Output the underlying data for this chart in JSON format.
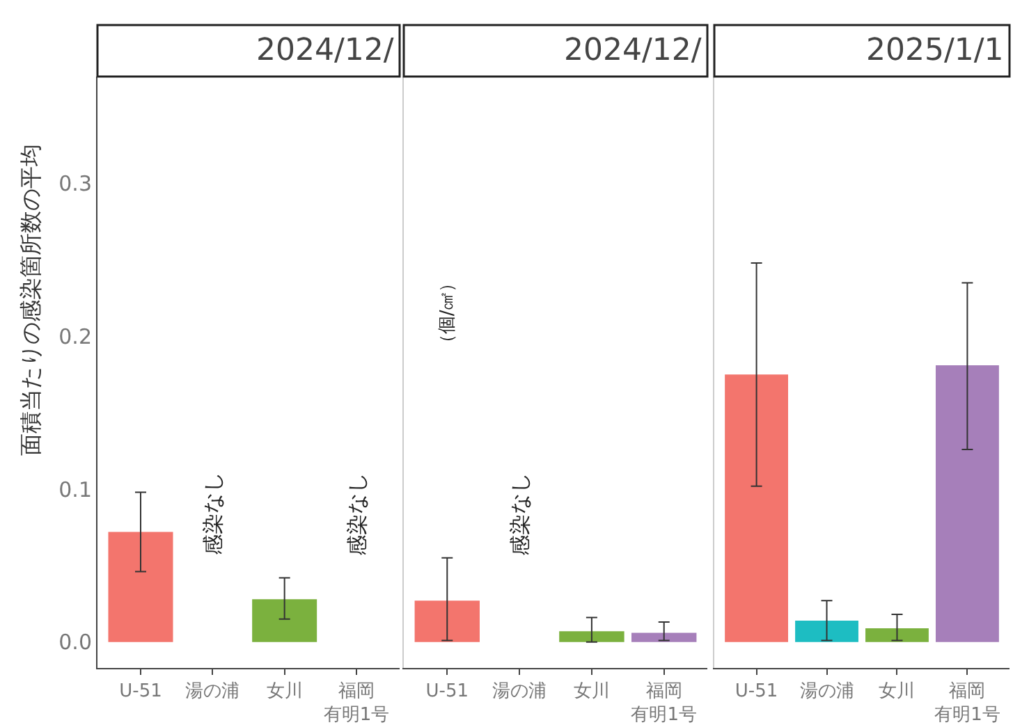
{
  "chart_data": [
    {
      "type": "bar",
      "title": "2024/12/",
      "ylabel": "面積当たりの感染箇所数の平均",
      "categories": [
        "U-51",
        "湯の浦",
        "女川",
        "福岡有明1号"
      ],
      "values": [
        0.072,
        null,
        0.028,
        null
      ],
      "colors": [
        "#f3756d",
        "#1dbdc2",
        "#7bb13e",
        "#a67fba"
      ],
      "errors": [
        [
          0.046,
          0.098
        ],
        null,
        [
          0.015,
          0.042
        ],
        null
      ],
      "ylim": [
        -0.017,
        0.37
      ],
      "yticks": [
        {
          "value": 0,
          "label": "0.0"
        },
        0.1,
        0.2,
        0.3
      ],
      "annotations": [
        "感染なし",
        "感染なし"
      ]
    },
    {
      "type": "bar",
      "title": "2024/12/",
      "categories": [
        "U-51",
        "湯の浦",
        "女川",
        "福岡有明1号"
      ],
      "values": [
        0.027,
        null,
        0.007,
        0.006
      ],
      "colors": [
        "#f3756d",
        "#1dbdc2",
        "#7bb13e",
        "#a67fba"
      ],
      "errors": [
        [
          0.001,
          0.055
        ],
        null,
        [
          0.0,
          0.016
        ],
        [
          0.001,
          0.013
        ]
      ],
      "ylim": [
        -0.017,
        0.37
      ],
      "tick_labels": "x",
      "annotations": [
        "感染なし",
        "（個/㎠）"
      ]
    },
    {
      "type": "bar",
      "title": "2025/1/1",
      "categories": [
        "U-51",
        "湯の浦",
        "女川",
        "福岡有明1号"
      ],
      "values": [
        0.175,
        0.014,
        0.009,
        0.181
      ],
      "colors": [
        "#f3756d",
        "#1dbdc2",
        "#7bb13e",
        "#a67fba"
      ],
      "errors": [
        [
          0.102,
          0.248
        ],
        [
          0.001,
          0.027
        ],
        [
          0.001,
          0.018
        ],
        [
          0.126,
          0.235
        ]
      ],
      "ylim": [
        -0.017,
        0.37
      ],
      "tick_labels": "x"
    }
  ]
}
